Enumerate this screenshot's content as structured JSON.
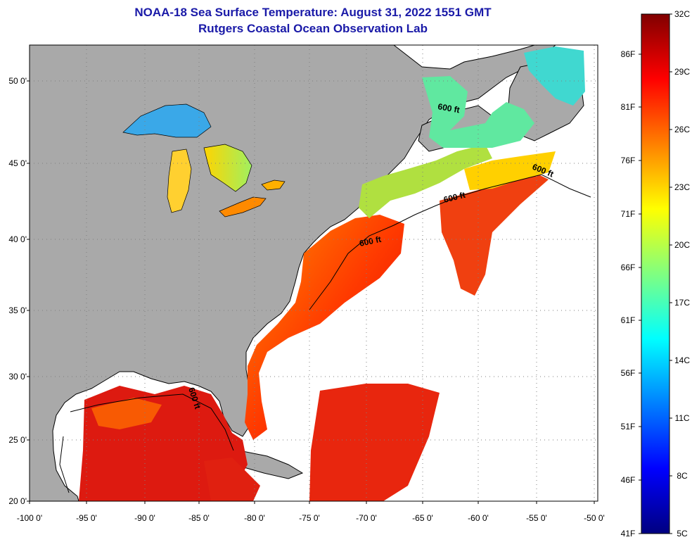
{
  "title": {
    "line1": "NOAA-18 Sea Surface Temperature:  August 31, 2022 1551 GMT",
    "line2": "Rutgers Coastal Ocean Observation Lab"
  },
  "map": {
    "lat_labels": [
      "50 0'",
      "45 0'",
      "40 0'",
      "35 0'",
      "30 0'",
      "25 0'",
      "20 0'"
    ],
    "lon_labels": [
      "-100 0'",
      "-95 0'",
      "-90 0'",
      "-85 0'",
      "-80 0'",
      "-75 0'",
      "-70 0'",
      "-65 0'",
      "-60 0'",
      "-55 0'",
      "-50 0'"
    ],
    "isobath_label": "600 ft",
    "colors": {
      "land": "#a9a9a9",
      "ocean_clear": "#ffffff",
      "title": "#1a1aa8"
    }
  },
  "colorbar": {
    "fahrenheit_labels": [
      "86F",
      "81F",
      "76F",
      "71F",
      "66F",
      "61F",
      "56F",
      "51F",
      "46F",
      "41F"
    ],
    "celsius_labels": [
      "32C",
      "29C",
      "26C",
      "23C",
      "20C",
      "17C",
      "14C",
      "11C",
      "8C",
      "5C"
    ],
    "colors": [
      "#000080",
      "#0000ff",
      "#0080ff",
      "#00ffff",
      "#80ff80",
      "#ffff00",
      "#ff8000",
      "#ff0000",
      "#800000"
    ]
  }
}
